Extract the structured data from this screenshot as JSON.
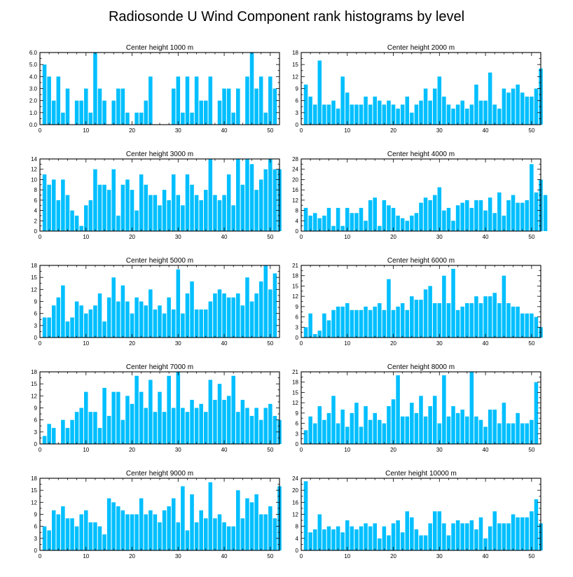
{
  "title": "Radiosonde U Wind Component rank histograms by level",
  "colors": {
    "bar": "#00BFFF",
    "axis": "#000000",
    "background": "#ffffff"
  },
  "chart_data": [
    {
      "type": "bar",
      "title": "Center height 1000 m",
      "xlim": [
        0,
        52
      ],
      "xticks": [
        0,
        10,
        20,
        30,
        40,
        50
      ],
      "ylim": [
        0,
        6
      ],
      "yticks": [
        0,
        1,
        2,
        3,
        4,
        5,
        6
      ],
      "ytick_labels": [
        "0.0",
        "1.0",
        "2.0",
        "3.0",
        "4.0",
        "5.0",
        "6.0"
      ],
      "values": [
        5,
        4,
        2,
        4,
        1,
        3,
        0,
        2,
        2,
        3,
        1,
        6,
        3,
        2,
        0,
        2,
        3,
        3,
        1,
        0,
        1,
        1,
        2,
        4,
        0,
        0,
        0,
        0,
        3,
        4,
        1,
        4,
        1,
        4,
        2,
        2,
        4,
        0,
        2,
        3,
        3,
        1,
        3,
        0,
        4,
        6,
        3,
        4,
        1,
        4,
        3
      ]
    },
    {
      "type": "bar",
      "title": "Center height 2000 m",
      "xlim": [
        0,
        52
      ],
      "xticks": [
        0,
        10,
        20,
        30,
        40,
        50
      ],
      "ylim": [
        0,
        18
      ],
      "yticks": [
        0,
        3,
        6,
        9,
        12,
        15,
        18
      ],
      "ytick_labels": [
        "0",
        "3",
        "6",
        "9",
        "12",
        "15",
        "18"
      ],
      "values": [
        10,
        7,
        5,
        16,
        5,
        5,
        6,
        4,
        12,
        8,
        5,
        5,
        5,
        7,
        5,
        7,
        6,
        5,
        6,
        5,
        4,
        5,
        7,
        3,
        5,
        6,
        9,
        6,
        9,
        12,
        7,
        5,
        4,
        5,
        6,
        4,
        5,
        10,
        6,
        6,
        13,
        5,
        4,
        9,
        8,
        9,
        10,
        8,
        7,
        7,
        9,
        14
      ]
    },
    {
      "type": "bar",
      "title": "Center height 3000 m",
      "xlim": [
        0,
        52
      ],
      "xticks": [
        0,
        10,
        20,
        30,
        40,
        50
      ],
      "ylim": [
        0,
        14
      ],
      "yticks": [
        0,
        2,
        4,
        6,
        8,
        10,
        12,
        14
      ],
      "ytick_labels": [
        "0",
        "2",
        "4",
        "6",
        "8",
        "10",
        "12",
        "14"
      ],
      "values": [
        11,
        9,
        10,
        6,
        10,
        7,
        4,
        3,
        1,
        5,
        6,
        12,
        9,
        9,
        8,
        12,
        3,
        9,
        10,
        8,
        4,
        11,
        9,
        7,
        7,
        5,
        8,
        6,
        11,
        7,
        5,
        11,
        9,
        7,
        6,
        8,
        14,
        7,
        6,
        7,
        11,
        5,
        14,
        9,
        14,
        13,
        8,
        10,
        12,
        14,
        12,
        12
      ]
    },
    {
      "type": "bar",
      "title": "Center height 4000 m",
      "xlim": [
        0,
        52
      ],
      "xticks": [
        0,
        10,
        20,
        30,
        40,
        50
      ],
      "ylim": [
        0,
        28
      ],
      "yticks": [
        0,
        4,
        8,
        12,
        16,
        20,
        24,
        28
      ],
      "ytick_labels": [
        "0",
        "4",
        "8",
        "12",
        "16",
        "20",
        "24",
        "28"
      ],
      "values": [
        9,
        6,
        7,
        5,
        6,
        9,
        2,
        9,
        2,
        9,
        7,
        7,
        9,
        4,
        12,
        13,
        2,
        12,
        10,
        9,
        6,
        5,
        4,
        6,
        7,
        11,
        13,
        12,
        14,
        17,
        8,
        9,
        4,
        10,
        11,
        12,
        9,
        12,
        12,
        8,
        13,
        7,
        15,
        6,
        12,
        14,
        11,
        11,
        12,
        26,
        15,
        20,
        14
      ]
    },
    {
      "type": "bar",
      "title": "Center height 5000 m",
      "xlim": [
        0,
        52
      ],
      "xticks": [
        0,
        10,
        20,
        30,
        40,
        50
      ],
      "ylim": [
        0,
        18
      ],
      "yticks": [
        0,
        3,
        6,
        9,
        12,
        15,
        18
      ],
      "ytick_labels": [
        "0",
        "3",
        "6",
        "9",
        "12",
        "15",
        "18"
      ],
      "values": [
        5,
        5,
        8,
        10,
        13,
        4,
        5,
        9,
        8,
        6,
        7,
        8,
        11,
        4,
        10,
        15,
        9,
        13,
        9,
        6,
        10,
        9,
        8,
        12,
        7,
        8,
        6,
        10,
        7,
        17,
        6,
        11,
        14,
        7,
        7,
        7,
        9,
        11,
        12,
        11,
        10,
        10,
        11,
        8,
        15,
        9,
        11,
        14,
        18,
        12,
        16
      ]
    },
    {
      "type": "bar",
      "title": "Center height 6000 m",
      "xlim": [
        0,
        52
      ],
      "xticks": [
        0,
        10,
        20,
        30,
        40,
        50
      ],
      "ylim": [
        0,
        21
      ],
      "yticks": [
        0,
        3,
        6,
        9,
        12,
        15,
        18,
        21
      ],
      "ytick_labels": [
        "0",
        "3",
        "6",
        "9",
        "12",
        "15",
        "18",
        "21"
      ],
      "values": [
        3,
        7,
        1,
        2,
        7,
        5,
        8,
        9,
        9,
        10,
        8,
        8,
        8,
        9,
        8,
        9,
        10,
        8,
        17,
        8,
        9,
        10,
        8,
        12,
        11,
        11,
        14,
        15,
        10,
        10,
        18,
        10,
        20,
        8,
        9,
        10,
        10,
        12,
        10,
        12,
        12,
        13,
        10,
        18,
        10,
        9,
        9,
        7,
        7,
        7,
        6,
        3
      ]
    },
    {
      "type": "bar",
      "title": "Center height 7000 m",
      "xlim": [
        0,
        52
      ],
      "xticks": [
        0,
        10,
        20,
        30,
        40,
        50
      ],
      "ylim": [
        0,
        18
      ],
      "yticks": [
        0,
        3,
        6,
        9,
        12,
        15,
        18
      ],
      "ytick_labels": [
        "0",
        "3",
        "6",
        "9",
        "12",
        "15",
        "18"
      ],
      "values": [
        2,
        5,
        4,
        0,
        6,
        4,
        6,
        8,
        9,
        13,
        8,
        8,
        4,
        14,
        7,
        13,
        13,
        6,
        12,
        10,
        17,
        13,
        9,
        16,
        8,
        13,
        8,
        17,
        9,
        18,
        9,
        8,
        11,
        9,
        10,
        8,
        16,
        11,
        15,
        11,
        12,
        17,
        8,
        11,
        9,
        7,
        9,
        6,
        9,
        10,
        7,
        6
      ]
    },
    {
      "type": "bar",
      "title": "Center height 8000 m",
      "xlim": [
        0,
        52
      ],
      "xticks": [
        0,
        10,
        20,
        30,
        40,
        50
      ],
      "ylim": [
        0,
        21
      ],
      "yticks": [
        0,
        3,
        6,
        9,
        12,
        15,
        18,
        21
      ],
      "ytick_labels": [
        "0",
        "3",
        "6",
        "9",
        "12",
        "15",
        "18",
        "21"
      ],
      "values": [
        4,
        8,
        6,
        11,
        7,
        9,
        14,
        6,
        10,
        5,
        9,
        12,
        5,
        11,
        7,
        9,
        7,
        6,
        11,
        13,
        20,
        8,
        8,
        12,
        9,
        14,
        8,
        11,
        14,
        6,
        20,
        8,
        11,
        9,
        10,
        8,
        21,
        8,
        7,
        5,
        10,
        10,
        6,
        12,
        6,
        6,
        9,
        6,
        6,
        7,
        18
      ]
    },
    {
      "type": "bar",
      "title": "Center height 9000 m",
      "xlim": [
        0,
        52
      ],
      "xticks": [
        0,
        10,
        20,
        30,
        40,
        50
      ],
      "ylim": [
        0,
        18
      ],
      "yticks": [
        0,
        3,
        6,
        9,
        12,
        15,
        18
      ],
      "ytick_labels": [
        "0",
        "3",
        "6",
        "9",
        "12",
        "15",
        "18"
      ],
      "values": [
        6,
        5,
        10,
        9,
        11,
        8,
        8,
        6,
        9,
        10,
        7,
        7,
        6,
        4,
        13,
        12,
        11,
        10,
        9,
        9,
        9,
        13,
        9,
        10,
        9,
        7,
        10,
        11,
        13,
        7,
        16,
        5,
        14,
        7,
        10,
        8,
        17,
        8,
        9,
        7,
        6,
        6,
        15,
        8,
        13,
        12,
        14,
        9,
        9,
        11,
        8,
        16
      ]
    },
    {
      "type": "bar",
      "title": "Center height 10000 m",
      "xlim": [
        0,
        52
      ],
      "xticks": [
        0,
        10,
        20,
        30,
        40,
        50
      ],
      "ylim": [
        0,
        24
      ],
      "yticks": [
        0,
        4,
        8,
        12,
        16,
        20,
        24
      ],
      "ytick_labels": [
        "0",
        "4",
        "8",
        "12",
        "16",
        "20",
        "24"
      ],
      "values": [
        23,
        6,
        7,
        12,
        7,
        8,
        7,
        8,
        6,
        10,
        8,
        7,
        8,
        9,
        8,
        9,
        4,
        8,
        5,
        9,
        10,
        6,
        13,
        11,
        7,
        5,
        5,
        9,
        13,
        13,
        9,
        5,
        9,
        10,
        9,
        9,
        10,
        7,
        11,
        4,
        8,
        13,
        9,
        9,
        9,
        12,
        11,
        11,
        11,
        13,
        17,
        9
      ]
    }
  ]
}
